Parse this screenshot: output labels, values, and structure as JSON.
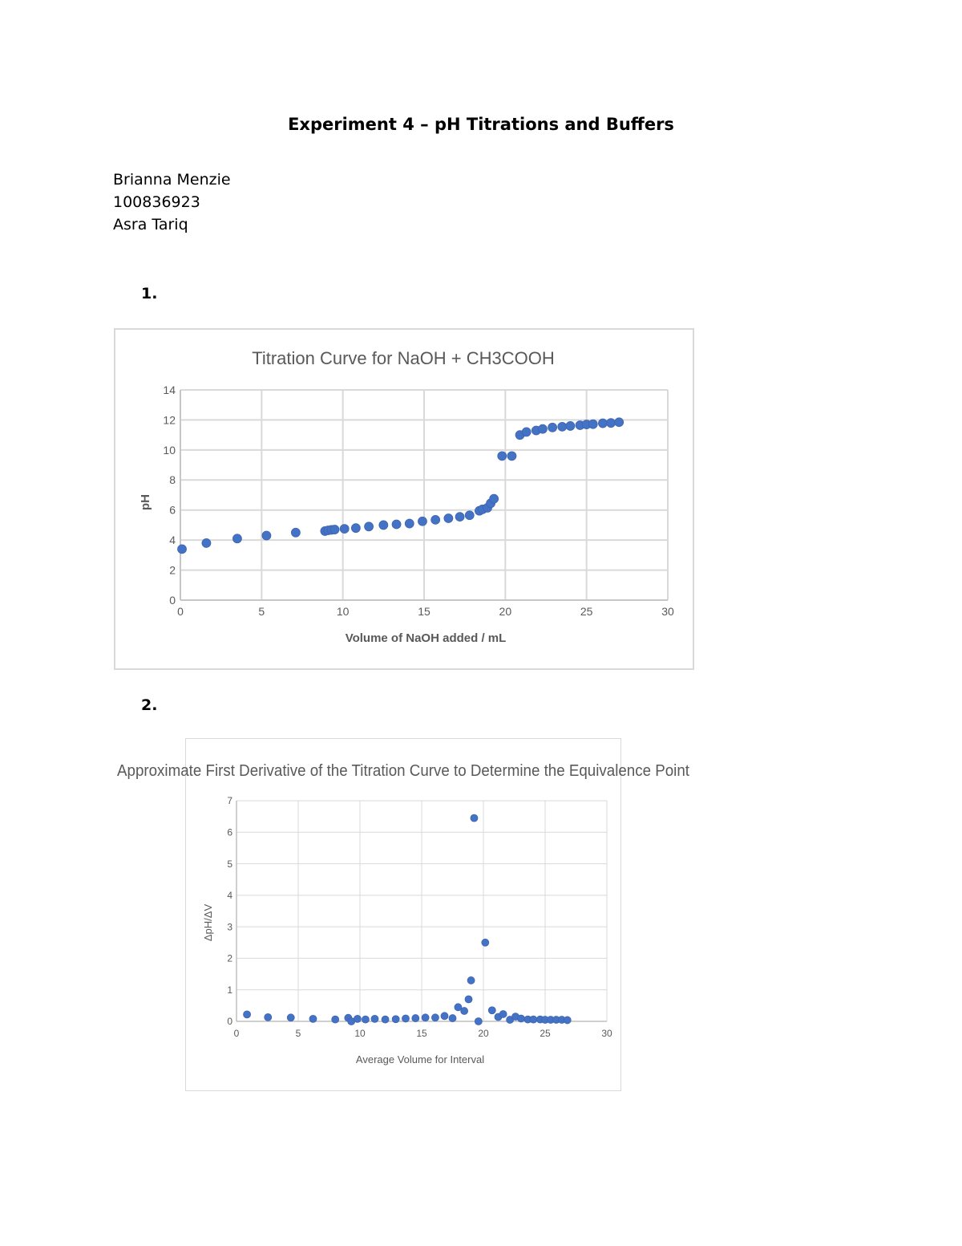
{
  "document": {
    "title": "Experiment 4 – pH Titrations and Buffers",
    "info_lines": [
      "Brianna Menzie",
      "100836923",
      "Asra Tariq"
    ],
    "question_labels": [
      "1.",
      "2."
    ]
  },
  "chart_data": [
    {
      "type": "scatter",
      "title": "Titration Curve for NaOH + CH3COOH",
      "xlabel": "Volume of NaOH added / mL",
      "ylabel": "pH",
      "xlim": [
        0,
        30
      ],
      "ylim": [
        0,
        14
      ],
      "xticks": [
        0,
        5,
        10,
        15,
        20,
        25,
        30
      ],
      "yticks": [
        0,
        2,
        4,
        6,
        8,
        10,
        12,
        14
      ],
      "grid": true,
      "legend": "none",
      "marker_color": "#4472c4",
      "series": [
        {
          "x": [
            0.1,
            1.6,
            3.5,
            5.3,
            7.1,
            8.9,
            9.1,
            9.3,
            9.5,
            10.1,
            10.8,
            11.6,
            12.5,
            13.3,
            14.1,
            14.9,
            15.7,
            16.5,
            17.2,
            17.8,
            18.4,
            18.6,
            18.9,
            19.1,
            19.3,
            19.8,
            20.4,
            20.9,
            21.3,
            21.9,
            22.3,
            22.9,
            23.5,
            24.0,
            24.6,
            25.0,
            25.4,
            26.0,
            26.5,
            27.0
          ],
          "y": [
            3.4,
            3.8,
            4.1,
            4.3,
            4.5,
            4.6,
            4.65,
            4.68,
            4.7,
            4.75,
            4.8,
            4.9,
            5.0,
            5.05,
            5.1,
            5.25,
            5.35,
            5.45,
            5.55,
            5.65,
            5.95,
            6.05,
            6.15,
            6.45,
            6.75,
            9.6,
            9.6,
            11.0,
            11.2,
            11.3,
            11.4,
            11.5,
            11.55,
            11.6,
            11.65,
            11.7,
            11.72,
            11.78,
            11.8,
            11.85
          ]
        }
      ]
    },
    {
      "type": "scatter",
      "title": "Approximate First Derivative of the Titration Curve to Determine the Equivalence Point",
      "xlabel": "Average Volume for Interval",
      "ylabel": "ΔpH/ΔV",
      "xlim": [
        0,
        30
      ],
      "ylim": [
        0,
        7
      ],
      "xticks": [
        0,
        5,
        10,
        15,
        20,
        25,
        30
      ],
      "yticks": [
        0,
        1,
        2,
        3,
        4,
        5,
        6,
        7
      ],
      "grid": true,
      "legend": "none",
      "marker_color": "#4472c4",
      "series": [
        {
          "x": [
            0.85,
            2.55,
            4.4,
            6.2,
            8.0,
            9.05,
            9.3,
            9.8,
            10.45,
            11.2,
            12.05,
            12.9,
            13.7,
            14.5,
            15.3,
            16.1,
            16.85,
            17.5,
            17.95,
            18.45,
            18.8,
            19.0,
            19.25,
            19.6,
            20.15,
            20.7,
            21.2,
            21.6,
            22.15,
            22.6,
            23.05,
            23.6,
            24.05,
            24.6,
            25.0,
            25.45,
            25.9,
            26.35,
            26.8
          ],
          "y": [
            0.22,
            0.13,
            0.12,
            0.08,
            0.06,
            0.11,
            0.0,
            0.08,
            0.06,
            0.08,
            0.06,
            0.07,
            0.09,
            0.1,
            0.12,
            0.12,
            0.17,
            0.1,
            0.45,
            0.33,
            0.7,
            1.3,
            6.45,
            0.0,
            2.5,
            0.35,
            0.14,
            0.23,
            0.05,
            0.15,
            0.09,
            0.06,
            0.06,
            0.06,
            0.05,
            0.05,
            0.05,
            0.05,
            0.04
          ]
        }
      ]
    }
  ]
}
